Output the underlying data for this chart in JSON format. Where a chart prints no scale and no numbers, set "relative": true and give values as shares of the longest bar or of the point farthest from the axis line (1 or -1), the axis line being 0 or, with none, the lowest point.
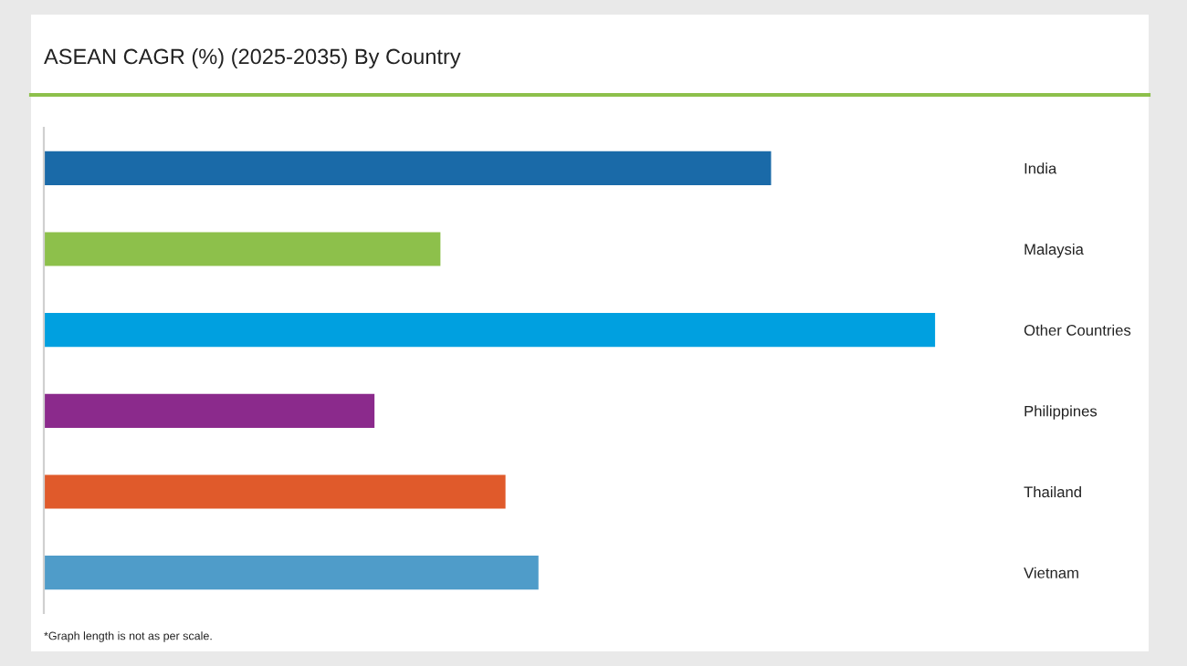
{
  "chart_data": {
    "type": "bar",
    "orientation": "horizontal",
    "relative": true,
    "title": "ASEAN CAGR (%) (2025-2035) By Country",
    "categories": [
      "India",
      "Malaysia",
      "Other Countries",
      "Philippines",
      "Thailand",
      "Vietnam"
    ],
    "values": [
      0.816,
      0.445,
      1,
      0.371,
      0.518,
      0.555
    ],
    "colors": [
      "#1a6aa8",
      "#8dc04b",
      "#00a0e0",
      "#8b2a8c",
      "#e05a2b",
      "#4f9cc9"
    ],
    "annotations": [
      "*Graph length is not as per scale."
    ],
    "grid": false,
    "legend": false
  }
}
